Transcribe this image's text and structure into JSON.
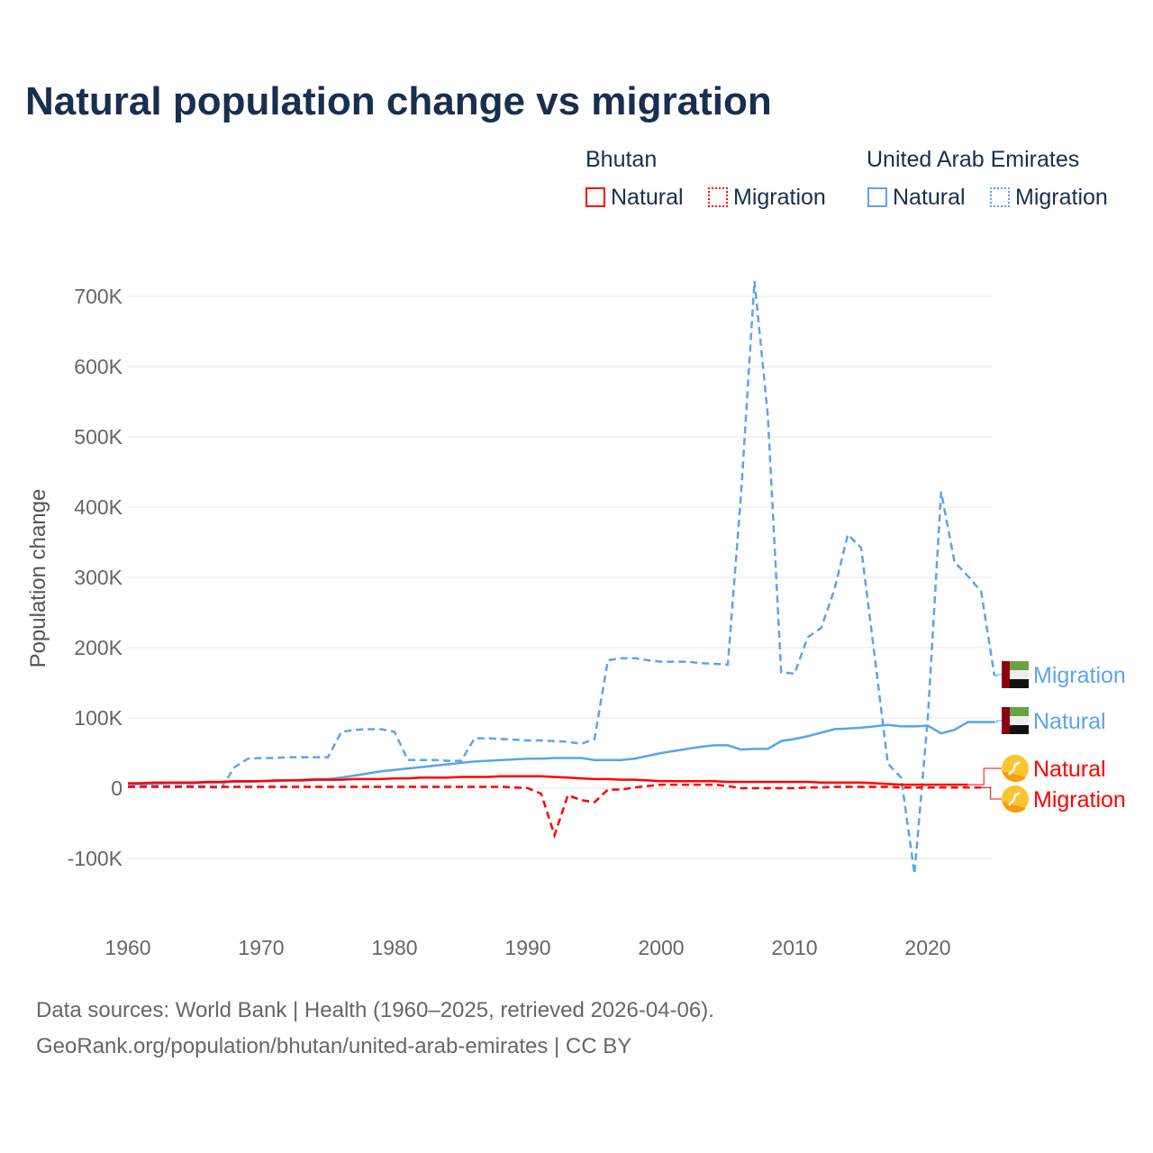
{
  "chart_data": {
    "type": "line",
    "title": "Natural population change vs migration",
    "ylabel": "Population change",
    "xlabel": "",
    "ylim": [
      -150000,
      750000
    ],
    "xlim": [
      1960,
      2025
    ],
    "yticks": [
      {
        "v": -100000,
        "label": "-100K"
      },
      {
        "v": 0,
        "label": "0"
      },
      {
        "v": 100000,
        "label": "100K"
      },
      {
        "v": 200000,
        "label": "200K"
      },
      {
        "v": 300000,
        "label": "300K"
      },
      {
        "v": 400000,
        "label": "400K"
      },
      {
        "v": 500000,
        "label": "500K"
      },
      {
        "v": 600000,
        "label": "600K"
      },
      {
        "v": 700000,
        "label": "700K"
      }
    ],
    "xticks": [
      {
        "v": 1960,
        "label": "1960"
      },
      {
        "v": 1970,
        "label": "1970"
      },
      {
        "v": 1980,
        "label": "1980"
      },
      {
        "v": 1990,
        "label": "1990"
      },
      {
        "v": 2000,
        "label": "2000"
      },
      {
        "v": 2010,
        "label": "2010"
      },
      {
        "v": 2020,
        "label": "2020"
      }
    ],
    "grid": true,
    "start_year": 1960,
    "legend": {
      "groups": [
        {
          "name": "Bhutan",
          "items": [
            "Natural",
            "Migration"
          ]
        },
        {
          "name": "United Arab Emirates",
          "items": [
            "Natural",
            "Migration"
          ]
        }
      ]
    },
    "series": [
      {
        "name": "UAE Migration",
        "label": "Migration",
        "color": "#5ba4ea",
        "dash": true,
        "values": [
          3,
          3,
          3,
          3,
          3,
          3,
          2,
          0,
          30,
          42,
          43,
          43,
          44,
          44,
          44,
          44,
          80,
          83,
          84,
          84,
          80,
          40,
          40,
          40,
          39,
          39,
          71,
          71,
          70,
          69,
          68,
          68,
          67,
          66,
          63,
          70,
          182,
          185,
          185,
          182,
          180,
          180,
          180,
          178,
          177,
          176,
          420,
          722,
          530,
          165,
          163,
          215,
          228,
          283,
          361,
          342,
          190,
          35,
          15,
          -122,
          100,
          422,
          322,
          302,
          280,
          160
        ]
      },
      {
        "name": "UAE Natural",
        "label": "Natural",
        "color": "#5ba4ea",
        "dash": false,
        "values": [
          5,
          6,
          6,
          7,
          7,
          7,
          8,
          8,
          9,
          9,
          10,
          10,
          11,
          12,
          13,
          13,
          15,
          18,
          21,
          24,
          26,
          28,
          30,
          32,
          34,
          36,
          38,
          39,
          40,
          41,
          42,
          42,
          43,
          43,
          43,
          40,
          40,
          40,
          42,
          46,
          50,
          53,
          56,
          59,
          61,
          61,
          55,
          56,
          56,
          67,
          70,
          74,
          79,
          84,
          85,
          86,
          88,
          90,
          88,
          88,
          89,
          78,
          83,
          94,
          94,
          94
        ]
      },
      {
        "name": "Bhutan Natural",
        "label": "Natural",
        "color": "#ff0000",
        "dash": false,
        "values": [
          7,
          7,
          8,
          8,
          8,
          8,
          9,
          9,
          10,
          10,
          10,
          11,
          11,
          11,
          12,
          12,
          12,
          13,
          13,
          13,
          14,
          14,
          15,
          15,
          15,
          16,
          16,
          16,
          17,
          17,
          17,
          17,
          16,
          15,
          14,
          13,
          13,
          12,
          12,
          11,
          10,
          10,
          10,
          10,
          10,
          9,
          9,
          9,
          9,
          9,
          9,
          9,
          8,
          8,
          8,
          8,
          7,
          6,
          5,
          5,
          5,
          5,
          5,
          5,
          null,
          null
        ]
      },
      {
        "name": "Bhutan Migration",
        "label": "Migration",
        "color": "#ff0000",
        "dash": true,
        "values": [
          2,
          2,
          2,
          2,
          2,
          2,
          2,
          2,
          2,
          2,
          2,
          2,
          2,
          2,
          2,
          2,
          2,
          2,
          2,
          2,
          2,
          2,
          2,
          2,
          2,
          2,
          2,
          2,
          2,
          1,
          0,
          -8,
          -67,
          -10,
          -17,
          -20,
          -2,
          -2,
          1,
          3,
          5,
          5,
          5,
          5,
          5,
          3,
          0,
          0,
          0,
          0,
          0,
          1,
          1,
          2,
          2,
          2,
          2,
          2,
          1,
          1,
          1,
          1,
          1,
          1,
          1,
          null
        ]
      }
    ]
  },
  "legend_labels": {
    "bhutan": "Bhutan",
    "uae": "United Arab Emirates",
    "natural": "Natural",
    "migration": "Migration"
  },
  "source": {
    "line1": "Data sources: World Bank | Health (1960–2025, retrieved 2026-04-06).",
    "line2": "GeoRank.org/population/bhutan/united-arab-emirates | CC BY"
  }
}
